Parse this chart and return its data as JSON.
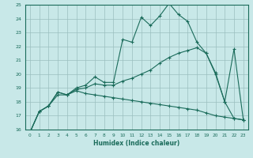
{
  "xlabel": "Humidex (Indice chaleur)",
  "ylabel": "",
  "xlim": [
    -0.5,
    23.5
  ],
  "ylim": [
    16,
    25
  ],
  "xticks": [
    0,
    1,
    2,
    3,
    4,
    5,
    6,
    7,
    8,
    9,
    10,
    11,
    12,
    13,
    14,
    15,
    16,
    17,
    18,
    19,
    20,
    21,
    22,
    23
  ],
  "yticks": [
    16,
    17,
    18,
    19,
    20,
    21,
    22,
    23,
    24,
    25
  ],
  "bg_color": "#c8e8e8",
  "grid_color": "#9bbfbf",
  "line_color": "#1a6b5a",
  "line1_y": [
    15.8,
    17.3,
    17.7,
    18.7,
    18.5,
    19.0,
    19.2,
    19.8,
    19.4,
    19.4,
    22.5,
    22.3,
    24.1,
    23.5,
    24.2,
    25.1,
    24.3,
    23.8,
    22.3,
    21.5,
    20.1,
    18.0,
    21.8,
    16.7
  ],
  "line2_y": [
    15.8,
    17.3,
    17.7,
    18.5,
    18.5,
    18.9,
    19.0,
    19.3,
    19.2,
    19.2,
    19.5,
    19.7,
    20.0,
    20.3,
    20.8,
    21.2,
    21.5,
    21.7,
    21.9,
    21.5,
    20.0,
    18.0,
    16.8,
    16.7
  ],
  "line3_y": [
    15.8,
    17.3,
    17.7,
    18.7,
    18.5,
    18.8,
    18.6,
    18.5,
    18.4,
    18.3,
    18.2,
    18.1,
    18.0,
    17.9,
    17.8,
    17.7,
    17.6,
    17.5,
    17.4,
    17.2,
    17.0,
    16.9,
    16.8,
    16.7
  ]
}
